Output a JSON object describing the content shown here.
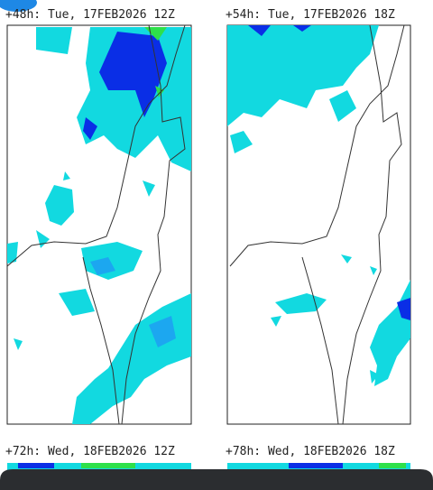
{
  "panels": [
    {
      "title": "+48h: Tue, 17FEB2026 12Z"
    },
    {
      "title": "+54h: Tue, 17FEB2026 18Z"
    },
    {
      "title": "+72h: Wed, 18FEB2026 12Z"
    },
    {
      "title": "+78h: Wed, 18FEB2026 18Z"
    }
  ]
}
